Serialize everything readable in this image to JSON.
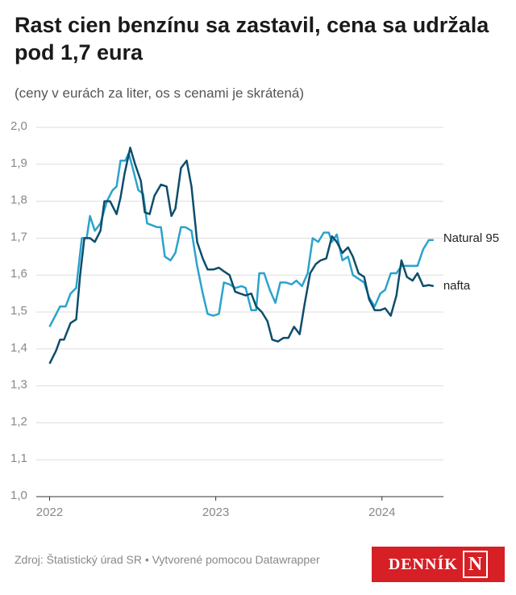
{
  "chart_data": {
    "type": "line",
    "title": "Rast cien benzínu sa zastavil, cena sa udržala pod 1,7 eura",
    "subtitle": "(ceny v eurách za liter, os s cenami je skrátená)",
    "xlim": [
      2021.92,
      2024.37
    ],
    "xticks": [
      2022,
      2023,
      2024
    ],
    "ylim": [
      1.0,
      2.0
    ],
    "yticks": [
      {
        "value": 1.0,
        "label": "1,0"
      },
      {
        "value": 1.1,
        "label": "1,1"
      },
      {
        "value": 1.2,
        "label": "1,2"
      },
      {
        "value": 1.3,
        "label": "1,3"
      },
      {
        "value": 1.4,
        "label": "1,4"
      },
      {
        "value": 1.5,
        "label": "1,5"
      },
      {
        "value": 1.6,
        "label": "1,6"
      },
      {
        "value": 1.7,
        "label": "1,7"
      },
      {
        "value": 1.8,
        "label": "1,8"
      },
      {
        "value": 1.9,
        "label": "1,9"
      },
      {
        "value": 2.0,
        "label": "2,0"
      }
    ],
    "grid": true,
    "series": [
      {
        "name": "Natural 95",
        "color": "#2aa3cc",
        "x": [
          2022.0,
          2022.063,
          2022.097,
          2022.126,
          2022.16,
          2022.194,
          2022.223,
          2022.243,
          2022.272,
          2022.306,
          2022.345,
          2022.379,
          2022.403,
          2022.427,
          2022.456,
          2022.476,
          2022.5,
          2022.534,
          2022.563,
          2022.587,
          2022.646,
          2022.67,
          2022.694,
          2022.728,
          2022.757,
          2022.791,
          2022.816,
          2022.854,
          2022.888,
          2022.922,
          2022.951,
          2022.985,
          2023.019,
          2023.049,
          2023.083,
          2023.117,
          2023.155,
          2023.18,
          2023.214,
          2023.243,
          2023.262,
          2023.291,
          2023.325,
          2023.359,
          2023.388,
          2023.422,
          2023.456,
          2023.485,
          2023.519,
          2023.553,
          2023.583,
          2023.617,
          2023.65,
          2023.68,
          2023.699,
          2023.728,
          2023.762,
          2023.796,
          2023.825,
          2023.859,
          2023.893,
          2023.922,
          2023.956,
          2023.99,
          2024.019,
          2024.053,
          2024.087,
          2024.117,
          2024.15,
          2024.184,
          2024.214,
          2024.248,
          2024.282,
          2024.311
        ],
        "values": [
          1.46,
          1.515,
          1.515,
          1.55,
          1.565,
          1.7,
          1.7,
          1.76,
          1.72,
          1.74,
          1.8,
          1.83,
          1.84,
          1.91,
          1.91,
          1.93,
          1.89,
          1.83,
          1.82,
          1.74,
          1.73,
          1.73,
          1.65,
          1.64,
          1.66,
          1.73,
          1.73,
          1.72,
          1.625,
          1.55,
          1.495,
          1.49,
          1.495,
          1.58,
          1.575,
          1.565,
          1.57,
          1.565,
          1.505,
          1.505,
          1.605,
          1.605,
          1.56,
          1.525,
          1.58,
          1.58,
          1.575,
          1.585,
          1.57,
          1.605,
          1.7,
          1.69,
          1.715,
          1.715,
          1.69,
          1.71,
          1.64,
          1.65,
          1.6,
          1.59,
          1.58,
          1.54,
          1.515,
          1.55,
          1.56,
          1.605,
          1.605,
          1.625,
          1.625,
          1.625,
          1.625,
          1.67,
          1.695,
          1.695
        ]
      },
      {
        "name": "nafta",
        "color": "#0d4d6c",
        "x": [
          2022.0,
          2022.039,
          2022.063,
          2022.087,
          2022.126,
          2022.16,
          2022.184,
          2022.209,
          2022.243,
          2022.272,
          2022.306,
          2022.33,
          2022.364,
          2022.403,
          2022.427,
          2022.451,
          2022.485,
          2022.515,
          2022.549,
          2022.573,
          2022.602,
          2022.631,
          2022.67,
          2022.704,
          2022.733,
          2022.757,
          2022.791,
          2022.825,
          2022.854,
          2022.888,
          2022.922,
          2022.951,
          2022.985,
          2023.019,
          2023.049,
          2023.083,
          2023.117,
          2023.146,
          2023.18,
          2023.214,
          2023.243,
          2023.277,
          2023.311,
          2023.34,
          2023.374,
          2023.408,
          2023.437,
          2023.471,
          2023.505,
          2023.534,
          2023.568,
          2023.602,
          2023.631,
          2023.665,
          2023.699,
          2023.728,
          2023.762,
          2023.796,
          2023.825,
          2023.859,
          2023.893,
          2023.922,
          2023.956,
          2023.99,
          2024.019,
          2024.053,
          2024.087,
          2024.117,
          2024.15,
          2024.184,
          2024.214,
          2024.248,
          2024.282,
          2024.311
        ],
        "values": [
          1.36,
          1.395,
          1.425,
          1.425,
          1.47,
          1.48,
          1.6,
          1.7,
          1.7,
          1.69,
          1.72,
          1.8,
          1.8,
          1.765,
          1.81,
          1.875,
          1.945,
          1.9,
          1.855,
          1.77,
          1.765,
          1.815,
          1.845,
          1.84,
          1.76,
          1.78,
          1.89,
          1.91,
          1.84,
          1.69,
          1.645,
          1.615,
          1.615,
          1.62,
          1.61,
          1.6,
          1.555,
          1.55,
          1.545,
          1.55,
          1.515,
          1.5,
          1.475,
          1.425,
          1.42,
          1.43,
          1.43,
          1.46,
          1.44,
          1.52,
          1.605,
          1.63,
          1.64,
          1.645,
          1.705,
          1.69,
          1.66,
          1.675,
          1.65,
          1.605,
          1.595,
          1.535,
          1.505,
          1.505,
          1.51,
          1.49,
          1.545,
          1.64,
          1.595,
          1.585,
          1.605,
          1.57,
          1.573,
          1.57
        ]
      }
    ]
  },
  "footer": {
    "source": "Zdroj: Štatistický úrad SR • Vytvorené pomocou Datawrapper",
    "logo_text": "DENNÍK",
    "logo_mark": "N"
  }
}
